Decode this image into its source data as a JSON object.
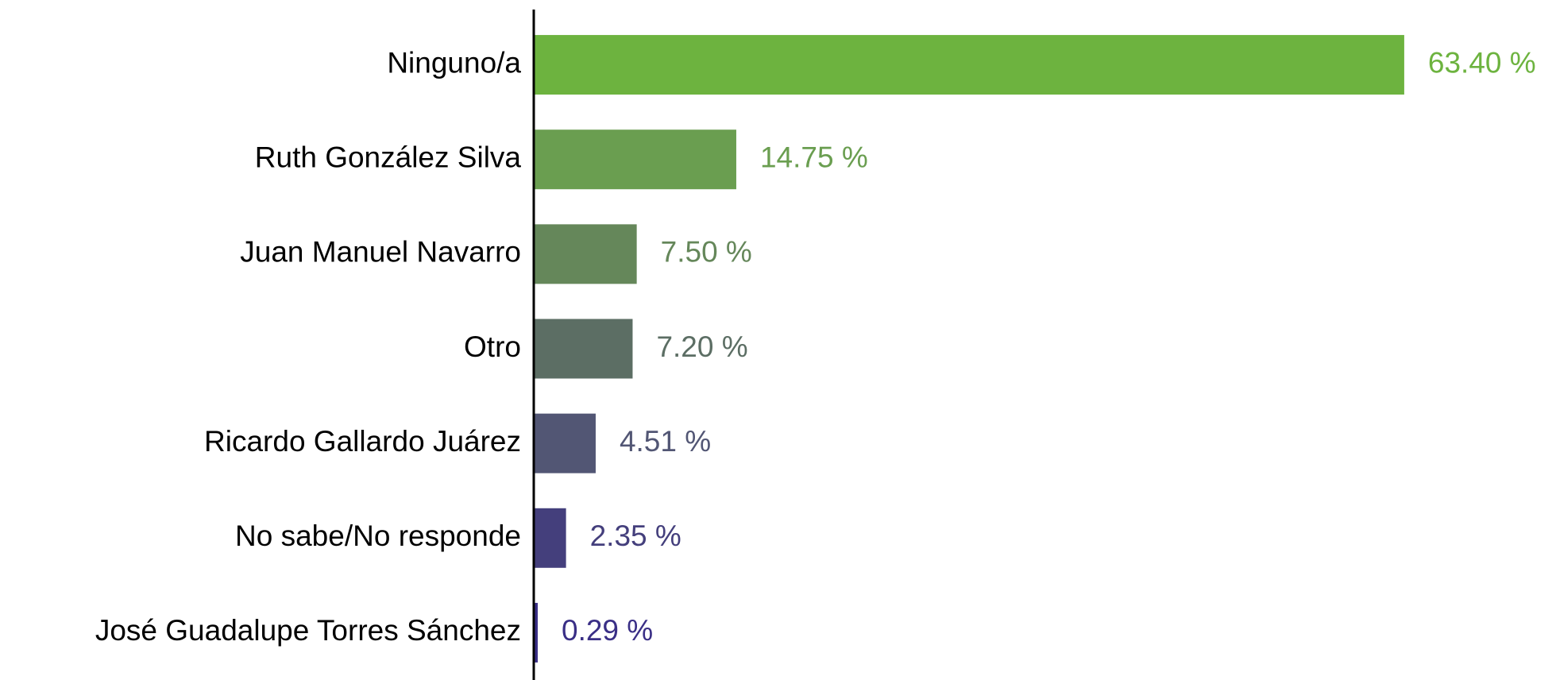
{
  "chart_data": {
    "type": "barh",
    "categories": [
      "Ninguno/a",
      "Ruth González Silva",
      "Juan Manuel Navarro",
      "Otro",
      "Ricardo Gallardo Juárez",
      "No sabe/No responde",
      "José Guadalupe Torres Sánchez"
    ],
    "values": [
      63.4,
      14.75,
      7.5,
      7.2,
      4.51,
      2.35,
      0.29
    ],
    "value_labels": [
      "63.40 %",
      "14.75 %",
      "7.50 %",
      "7.20 %",
      "4.51 %",
      "2.35 %",
      "0.29 %"
    ],
    "colors": [
      "#6db33f",
      "#6a9e50",
      "#65875a",
      "#5c6e64",
      "#525674",
      "#443f7c",
      "#3a2f86"
    ],
    "xlim": [
      0,
      70
    ]
  }
}
